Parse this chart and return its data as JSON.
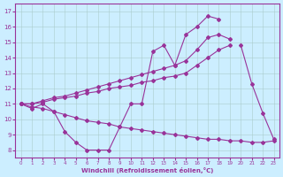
{
  "xlabel": "Windchill (Refroidissement éolien,°C)",
  "bg_color": "#cceeff",
  "line_color": "#993399",
  "grid_color": "#aacccc",
  "x": [
    0,
    1,
    2,
    3,
    4,
    5,
    6,
    7,
    8,
    9,
    10,
    11,
    12,
    13,
    14,
    15,
    16,
    17,
    18,
    19,
    20,
    21,
    22,
    23
  ],
  "line_zigzag": [
    11.0,
    10.7,
    11.0,
    10.5,
    9.2,
    8.5,
    8.0,
    8.0,
    8.0,
    9.5,
    11.0,
    11.0,
    14.4,
    14.8,
    13.5,
    15.5,
    16.0,
    16.7,
    16.5,
    null,
    14.8,
    12.3,
    10.4,
    8.7
  ],
  "line_rise1": [
    11.0,
    11.0,
    11.2,
    11.4,
    11.5,
    11.7,
    11.9,
    12.1,
    12.3,
    12.5,
    12.7,
    12.9,
    13.1,
    13.3,
    13.5,
    13.8,
    14.5,
    15.3,
    15.5,
    15.2,
    null,
    null,
    null,
    null
  ],
  "line_rise2": [
    11.0,
    11.0,
    11.1,
    11.3,
    11.4,
    11.5,
    11.7,
    11.8,
    12.0,
    12.1,
    12.2,
    12.4,
    12.5,
    12.7,
    12.8,
    13.0,
    13.5,
    14.0,
    14.5,
    14.8,
    null,
    null,
    null,
    null
  ],
  "line_decline": [
    11.0,
    10.8,
    10.7,
    10.5,
    10.3,
    10.1,
    9.9,
    9.8,
    9.7,
    9.5,
    9.4,
    9.3,
    9.2,
    9.1,
    9.0,
    8.9,
    8.8,
    8.7,
    8.7,
    8.6,
    8.6,
    8.5,
    8.5,
    8.6
  ],
  "xlim": [
    -0.5,
    23.5
  ],
  "ylim": [
    7.5,
    17.5
  ],
  "yticks": [
    8,
    9,
    10,
    11,
    12,
    13,
    14,
    15,
    16,
    17
  ],
  "xticks": [
    0,
    1,
    2,
    3,
    4,
    5,
    6,
    7,
    8,
    9,
    10,
    11,
    12,
    13,
    14,
    15,
    16,
    17,
    18,
    19,
    20,
    21,
    22,
    23
  ]
}
